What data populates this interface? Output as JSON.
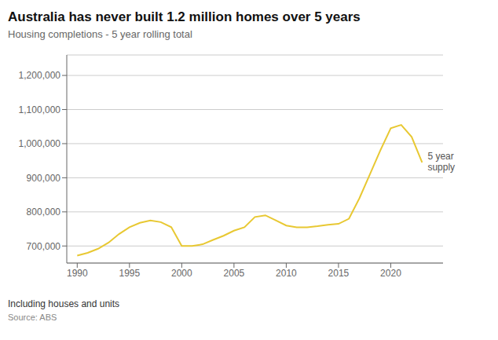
{
  "chart_data": {
    "type": "line",
    "title": "Australia has never built 1.2 million homes over 5 years",
    "subtitle": "Housing completions - 5 year rolling total",
    "footnote": "Including houses and units",
    "source": "Source: ABS",
    "x": [
      1990,
      1991,
      1992,
      1993,
      1994,
      1995,
      1996,
      1997,
      1998,
      1999,
      2000,
      2001,
      2002,
      2003,
      2004,
      2005,
      2006,
      2007,
      2008,
      2009,
      2010,
      2011,
      2012,
      2013,
      2014,
      2015,
      2016,
      2017,
      2018,
      2019,
      2020,
      2021,
      2022,
      2023
    ],
    "values": [
      672000,
      680000,
      692000,
      710000,
      735000,
      755000,
      768000,
      775000,
      770000,
      755000,
      700000,
      700000,
      705000,
      718000,
      730000,
      745000,
      755000,
      785000,
      790000,
      775000,
      760000,
      755000,
      755000,
      758000,
      762000,
      765000,
      780000,
      840000,
      910000,
      980000,
      1045000,
      1055000,
      1020000,
      945000
    ],
    "color": "#E8C832",
    "xlim": [
      1989,
      2025
    ],
    "xticks": [
      1990,
      1995,
      2000,
      2005,
      2010,
      2015,
      2020
    ],
    "ylim": [
      650000,
      1260000
    ],
    "yticks": [
      {
        "value": 700000,
        "label": "700,000"
      },
      {
        "value": 800000,
        "label": "800,000"
      },
      {
        "value": 900000,
        "label": "900,000"
      },
      {
        "value": 1000000,
        "label": "1,000,000"
      },
      {
        "value": 1100000,
        "label": "1,100,000"
      },
      {
        "value": 1200000,
        "label": "1,200,000"
      }
    ],
    "grid": "y",
    "annotations": [
      {
        "text": "5 year\nsupply",
        "x": 2023,
        "y": 945000
      }
    ]
  }
}
